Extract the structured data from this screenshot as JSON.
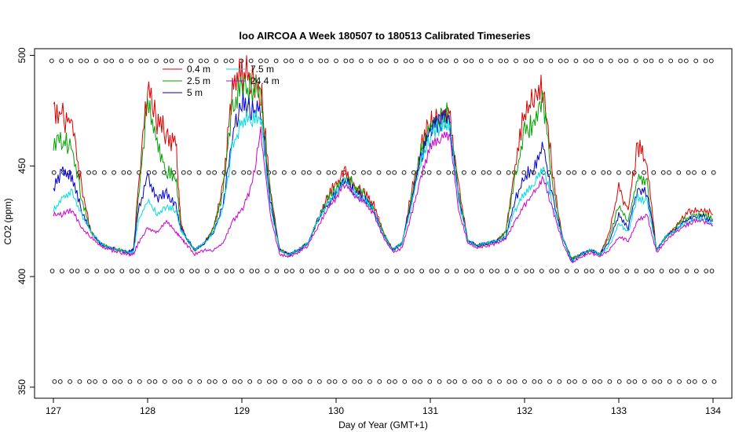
{
  "chart_data": {
    "type": "line",
    "title": "loo AIRCOA A  Week 180507 to 180513  Calibrated Timeseries",
    "xlabel": "Day of Year (GMT+1)",
    "ylabel": "CO2 (ppm)",
    "xlim": [
      126.8,
      134.2
    ],
    "ylim": [
      345,
      503
    ],
    "x_ticks": [
      127,
      128,
      129,
      130,
      131,
      132,
      133,
      134
    ],
    "y_ticks": [
      350,
      400,
      450,
      500
    ],
    "grid": false,
    "legend": {
      "position": "top-left",
      "entries": [
        {
          "label": "0.4 m",
          "color": "#dd0000"
        },
        {
          "label": "2.5 m",
          "color": "#00a000"
        },
        {
          "label": "5 m",
          "color": "#0000cc"
        },
        {
          "label": "7.5 m",
          "color": "#00dddd"
        },
        {
          "label": "24.4 m",
          "color": "#cc00cc"
        }
      ]
    },
    "x": [
      127.0,
      127.1,
      127.2,
      127.3,
      127.4,
      127.5,
      127.6,
      127.7,
      127.8,
      127.85,
      127.9,
      128.0,
      128.1,
      128.2,
      128.3,
      128.35,
      128.4,
      128.5,
      128.6,
      128.7,
      128.8,
      128.9,
      129.0,
      129.1,
      129.2,
      129.3,
      129.4,
      129.5,
      129.6,
      129.7,
      129.8,
      129.9,
      130.0,
      130.1,
      130.2,
      130.3,
      130.4,
      130.5,
      130.6,
      130.7,
      130.8,
      130.9,
      131.0,
      131.1,
      131.2,
      131.3,
      131.4,
      131.5,
      131.6,
      131.7,
      131.8,
      131.9,
      132.0,
      132.1,
      132.2,
      132.3,
      132.4,
      132.5,
      132.6,
      132.7,
      132.8,
      132.9,
      133.0,
      133.1,
      133.2,
      133.3,
      133.4,
      133.5,
      133.6,
      133.7,
      133.8,
      133.9,
      134.0
    ],
    "series": [
      {
        "name": "0.4 m",
        "color": "#dd0000",
        "values": [
          478,
          472,
          470,
          440,
          420,
          415,
          413,
          412,
          411,
          412,
          440,
          485,
          470,
          465,
          460,
          425,
          418,
          412,
          415,
          422,
          440,
          485,
          492,
          490,
          485,
          440,
          412,
          410,
          412,
          415,
          425,
          435,
          442,
          448,
          440,
          438,
          432,
          420,
          412,
          415,
          438,
          458,
          470,
          474,
          476,
          440,
          416,
          414,
          415,
          416,
          420,
          450,
          475,
          480,
          488,
          445,
          418,
          408,
          410,
          412,
          410,
          420,
          440,
          430,
          460,
          450,
          412,
          418,
          422,
          428,
          430,
          430,
          428
        ]
      },
      {
        "name": "2.5 m",
        "color": "#00a000",
        "values": [
          460,
          462,
          458,
          435,
          420,
          415,
          413,
          412,
          411,
          412,
          435,
          478,
          460,
          448,
          445,
          423,
          418,
          412,
          415,
          422,
          438,
          478,
          485,
          485,
          482,
          438,
          412,
          410,
          412,
          415,
          425,
          434,
          440,
          446,
          440,
          437,
          430,
          420,
          412,
          415,
          436,
          456,
          468,
          472,
          474,
          438,
          416,
          414,
          415,
          416,
          420,
          445,
          465,
          470,
          480,
          440,
          418,
          408,
          410,
          412,
          410,
          418,
          432,
          425,
          445,
          442,
          412,
          418,
          422,
          426,
          428,
          428,
          426
        ]
      },
      {
        "name": "5 m",
        "color": "#0000cc",
        "values": [
          440,
          448,
          445,
          430,
          420,
          415,
          413,
          412,
          411,
          412,
          430,
          445,
          435,
          438,
          432,
          422,
          418,
          412,
          415,
          420,
          432,
          465,
          478,
          475,
          475,
          435,
          412,
          410,
          412,
          415,
          425,
          432,
          438,
          444,
          438,
          436,
          430,
          419,
          412,
          415,
          434,
          454,
          466,
          470,
          472,
          436,
          416,
          414,
          415,
          416,
          418,
          435,
          445,
          450,
          458,
          435,
          418,
          407,
          410,
          412,
          410,
          416,
          428,
          422,
          440,
          438,
          412,
          418,
          421,
          425,
          427,
          427,
          425
        ]
      },
      {
        "name": "7.5 m",
        "color": "#00dddd",
        "values": [
          430,
          435,
          438,
          428,
          420,
          415,
          413,
          412,
          411,
          411,
          425,
          435,
          428,
          432,
          430,
          421,
          418,
          412,
          415,
          420,
          430,
          458,
          470,
          472,
          472,
          432,
          412,
          410,
          412,
          415,
          425,
          432,
          438,
          443,
          437,
          435,
          429,
          419,
          412,
          415,
          432,
          452,
          464,
          468,
          470,
          434,
          416,
          414,
          415,
          416,
          418,
          430,
          438,
          442,
          450,
          432,
          418,
          407,
          410,
          412,
          410,
          414,
          424,
          420,
          436,
          434,
          412,
          418,
          421,
          424,
          426,
          426,
          424
        ]
      },
      {
        "name": "24.4 m",
        "color": "#cc00cc",
        "values": [
          428,
          428,
          430,
          422,
          418,
          414,
          412,
          411,
          410,
          410,
          415,
          422,
          420,
          425,
          420,
          418,
          415,
          410,
          412,
          412,
          415,
          425,
          430,
          440,
          465,
          428,
          410,
          409,
          411,
          414,
          422,
          430,
          436,
          442,
          436,
          434,
          428,
          418,
          411,
          413,
          428,
          445,
          458,
          462,
          465,
          430,
          415,
          413,
          414,
          415,
          417,
          425,
          432,
          438,
          444,
          430,
          416,
          406,
          409,
          411,
          409,
          412,
          418,
          416,
          425,
          428,
          411,
          416,
          420,
          423,
          425,
          425,
          423
        ]
      }
    ],
    "reference_markers": [
      {
        "y": 497.5,
        "symbol": "o"
      },
      {
        "y": 447,
        "symbol": "o"
      },
      {
        "y": 402.5,
        "symbol": "o"
      },
      {
        "y": 352.5,
        "symbol": "o"
      }
    ]
  }
}
